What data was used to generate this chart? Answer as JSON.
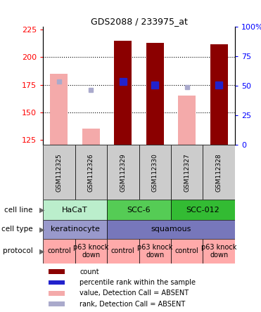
{
  "title": "GDS2088 / 233975_at",
  "samples": [
    "GSM112325",
    "GSM112326",
    "GSM112329",
    "GSM112330",
    "GSM112327",
    "GSM112328"
  ],
  "ylim_left": [
    120,
    228
  ],
  "ylim_right": [
    0,
    100
  ],
  "yticks_left": [
    125,
    150,
    175,
    200,
    225
  ],
  "yticks_right": [
    0,
    25,
    50,
    75,
    100
  ],
  "ytick_right_labels": [
    "0",
    "25",
    "50",
    "75",
    "100%"
  ],
  "value_bars": [
    185,
    135,
    215,
    213,
    165,
    212
  ],
  "value_bar_color_absent": "#F4AAAA",
  "value_bar_color_present": "#8B0000",
  "rank_vals": [
    178,
    170,
    178,
    175,
    173,
    175
  ],
  "rank_color_absent": "#AAAACC",
  "rank_color_present": "#2222CC",
  "detection_absent": [
    true,
    true,
    false,
    false,
    true,
    false
  ],
  "gridlines": [
    150,
    175,
    200
  ],
  "cell_lines": [
    {
      "label": "HaCaT",
      "start": 0,
      "end": 2,
      "color": "#BBEECC"
    },
    {
      "label": "SCC-6",
      "start": 2,
      "end": 4,
      "color": "#55CC55"
    },
    {
      "label": "SCC-012",
      "start": 4,
      "end": 6,
      "color": "#33BB33"
    }
  ],
  "cell_types": [
    {
      "label": "keratinocyte",
      "start": 0,
      "end": 2,
      "color": "#9999CC"
    },
    {
      "label": "squamous",
      "start": 2,
      "end": 6,
      "color": "#7777BB"
    }
  ],
  "protocols": [
    {
      "label": "control",
      "start": 0,
      "end": 1,
      "color": "#FFAAAA"
    },
    {
      "label": "p63 knock\ndown",
      "start": 1,
      "end": 2,
      "color": "#FFAAAA"
    },
    {
      "label": "control",
      "start": 2,
      "end": 3,
      "color": "#FFAAAA"
    },
    {
      "label": "p63 knock\ndown",
      "start": 3,
      "end": 4,
      "color": "#FFAAAA"
    },
    {
      "label": "control",
      "start": 4,
      "end": 5,
      "color": "#FFAAAA"
    },
    {
      "label": "p63 knock\ndown",
      "start": 5,
      "end": 6,
      "color": "#FFAAAA"
    }
  ],
  "legend_items": [
    {
      "color": "#8B0000",
      "label": "count"
    },
    {
      "color": "#2222CC",
      "label": "percentile rank within the sample"
    },
    {
      "color": "#F4AAAA",
      "label": "value, Detection Call = ABSENT"
    },
    {
      "color": "#AAAACC",
      "label": "rank, Detection Call = ABSENT"
    }
  ],
  "row_labels": [
    "cell line",
    "cell type",
    "protocol"
  ],
  "sample_col_color": "#CCCCCC",
  "bar_width": 0.55
}
